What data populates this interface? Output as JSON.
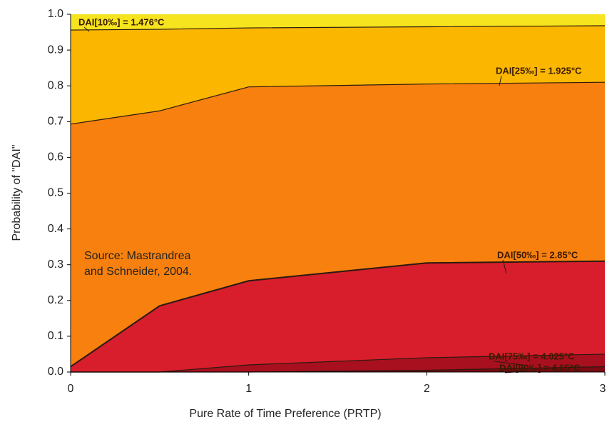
{
  "chart_data": {
    "type": "area",
    "xlabel": "Pure Rate of Time Preference (PRTP)",
    "ylabel": "Probability of \"DAI\"",
    "annotation": [
      "Source: Mastrandrea",
      "and Schneider, 2004."
    ],
    "top_color": "#f6e41e",
    "x": [
      0,
      0.5,
      1,
      2,
      3
    ],
    "series": [
      {
        "name": "DAI[10‰] = 1.476°C",
        "color": "#fbb600",
        "values": [
          0.956,
          0.958,
          0.962,
          0.965,
          0.968
        ]
      },
      {
        "name": "DAI[25‰] = 1.925°C",
        "color": "#f7800f",
        "values": [
          0.693,
          0.73,
          0.797,
          0.805,
          0.81
        ]
      },
      {
        "name": "DAI[50‰] = 2.85°C",
        "color": "#d81e2c",
        "values": [
          0.015,
          0.185,
          0.255,
          0.305,
          0.31
        ]
      },
      {
        "name": "DAI[75‰] = 4.025°C",
        "color": "#a8101f",
        "values": [
          0,
          0,
          0.02,
          0.04,
          0.05
        ]
      },
      {
        "name": "DAI[90‰] = 4.65°C",
        "color": "#7a0a14",
        "values": [
          0,
          0,
          0,
          0.005,
          0.015
        ]
      }
    ],
    "xlim": [
      0,
      3
    ],
    "xticks": [
      0,
      1,
      2,
      3
    ],
    "ylim": [
      0,
      1
    ],
    "yticks": [
      {
        "value": 0,
        "label": "0.0"
      },
      0.1,
      0.2,
      0.3,
      0.4,
      0.5,
      0.6,
      0.7,
      0.8,
      0.9,
      {
        "value": 1,
        "label": "1.0"
      }
    ]
  }
}
